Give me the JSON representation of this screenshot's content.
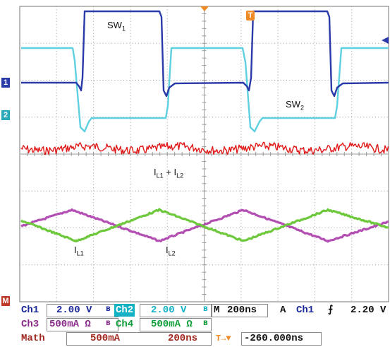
{
  "annotations": {
    "sw1_main": "SW",
    "sw1_sub": "1",
    "sw2_main": "SW",
    "sw2_sub": "2",
    "il1l2_a": "I",
    "il1l2_a_sub": "L1",
    "il1l2_plus": " + I",
    "il1l2_b_sub": "L2",
    "il1_main": "I",
    "il1_sub": "L1",
    "il2_main": "I",
    "il2_sub": "L2"
  },
  "markers": {
    "ch1": "1",
    "ch2": "2",
    "math": "M",
    "trigger": "T"
  },
  "colors": {
    "ch1": "#2a3aa8",
    "ch2": "#5fd0e0",
    "ch3": "#b34fb3",
    "ch4": "#6ec83c",
    "math": "#e01818",
    "grid": "#9a9a9a",
    "trigger": "#f08a24"
  },
  "panel": {
    "ch1_label": "Ch1",
    "ch1_scale": "2.00 V",
    "ch1_bw": "B",
    "ch2_label": "Ch2",
    "ch2_scale": "2.00 V",
    "ch2_bw": "B",
    "ch3_label": "Ch3",
    "ch3_scale": "500mA Ω",
    "ch3_bw": "B",
    "ch4_label": "Ch4",
    "ch4_scale": "500mA Ω",
    "ch4_bw": "B",
    "math_label": "Math",
    "math_scale": "500mA",
    "math_time": "200ns",
    "time_label": "M",
    "time_scale": "200ns",
    "trig_mode": "A",
    "trig_source": "Ch1",
    "trig_slope": "⨍",
    "trig_level": "2.20 V",
    "trig_pos_icon": "T→▼",
    "trig_pos_value": "-260.000ns"
  }
}
